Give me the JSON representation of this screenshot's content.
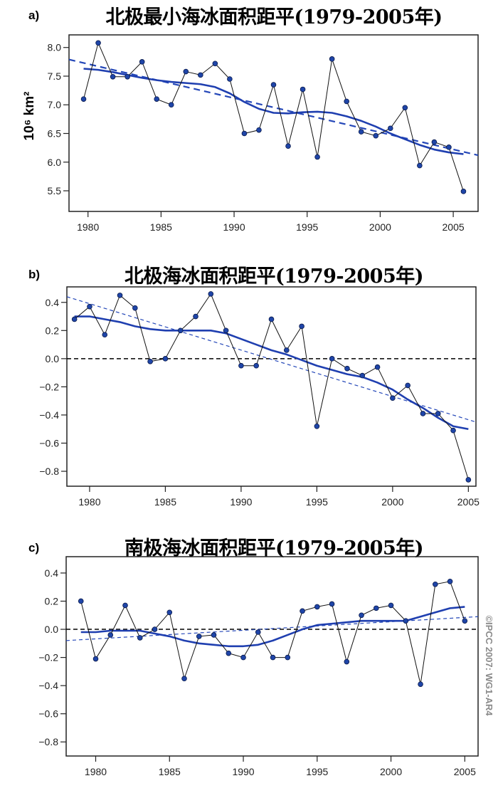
{
  "colors": {
    "points": "#1f45a8",
    "smooth": "#1f3fb0",
    "trend": "#2447b8",
    "observed_line": "#111111",
    "zero_line": "#000000",
    "copyright": "#9a9a9a"
  },
  "copyright": "©IPCC 2007: WG1-AR4",
  "chart_data": [
    {
      "type": "line",
      "panel_label": "a)",
      "title": "北极最小海冰面积距平(1979-2005年)",
      "ylabel": "10⁶ km²",
      "xlabel": "",
      "xlim": [
        1978.7,
        2006.7
      ],
      "ylim": [
        5.14,
        8.22
      ],
      "xticks": [
        1980,
        1985,
        1990,
        1995,
        2000,
        2005
      ],
      "yticks": [
        "5.5",
        "6.0",
        "6.5",
        "7.0",
        "7.5",
        "8.0"
      ],
      "zero_line": false,
      "x": [
        1979,
        1980,
        1981,
        1982,
        1983,
        1984,
        1985,
        1986,
        1987,
        1988,
        1989,
        1990,
        1991,
        1992,
        1993,
        1994,
        1995,
        1996,
        1997,
        1998,
        1999,
        2000,
        2001,
        2002,
        2003,
        2004,
        2005
      ],
      "series": [
        {
          "kind": "observed",
          "values": [
            7.1,
            8.08,
            7.49,
            7.49,
            7.75,
            7.1,
            7.0,
            7.58,
            7.52,
            7.72,
            7.45,
            6.5,
            6.56,
            7.35,
            6.28,
            7.27,
            6.09,
            7.8,
            7.06,
            6.53,
            6.46,
            6.59,
            6.95,
            5.94,
            6.35,
            6.26,
            5.49
          ]
        },
        {
          "kind": "smoothed",
          "values": [
            7.63,
            7.61,
            7.57,
            7.52,
            7.47,
            7.43,
            7.4,
            7.38,
            7.36,
            7.31,
            7.2,
            7.05,
            6.93,
            6.86,
            6.85,
            6.87,
            6.88,
            6.86,
            6.8,
            6.72,
            6.62,
            6.5,
            6.4,
            6.3,
            6.22,
            6.17,
            6.14
          ]
        },
        {
          "kind": "linear-trend",
          "x": [
            1978.7,
            2006.7
          ],
          "values": [
            7.79,
            6.12
          ]
        }
      ]
    },
    {
      "type": "line",
      "panel_label": "b)",
      "title": "北极海冰面积距平(1979-2005年)",
      "xlabel": "",
      "ylabel": "",
      "xlim": [
        1978.5,
        2005.5
      ],
      "ylim": [
        -0.906,
        0.51
      ],
      "xticks": [
        1980,
        1985,
        1990,
        1995,
        2000,
        2005
      ],
      "yticks": [
        "-0.8",
        "-0.6",
        "-0.4",
        "-0.2",
        "0.0",
        "0.2",
        "0.4"
      ],
      "zero_line": true,
      "x": [
        1979,
        1980,
        1981,
        1982,
        1983,
        1984,
        1985,
        1986,
        1987,
        1988,
        1989,
        1990,
        1991,
        1992,
        1993,
        1994,
        1995,
        1996,
        1997,
        1998,
        1999,
        2000,
        2001,
        2002,
        2003,
        2004,
        2005
      ],
      "series": [
        {
          "kind": "observed",
          "values": [
            0.28,
            0.37,
            0.17,
            0.45,
            0.36,
            -0.02,
            0.0,
            0.2,
            0.3,
            0.46,
            0.2,
            -0.05,
            -0.05,
            0.28,
            0.06,
            0.23,
            -0.48,
            0.0,
            -0.07,
            -0.12,
            -0.06,
            -0.28,
            -0.19,
            -0.39,
            -0.39,
            -0.51,
            -0.86
          ]
        },
        {
          "kind": "smoothed",
          "values": [
            0.3,
            0.3,
            0.28,
            0.26,
            0.23,
            0.21,
            0.2,
            0.2,
            0.2,
            0.2,
            0.18,
            0.14,
            0.1,
            0.06,
            0.03,
            -0.01,
            -0.05,
            -0.08,
            -0.11,
            -0.13,
            -0.17,
            -0.22,
            -0.29,
            -0.35,
            -0.42,
            -0.48,
            -0.5
          ]
        },
        {
          "kind": "linear-trend",
          "x": [
            1978.5,
            2005.5
          ],
          "values": [
            0.44,
            -0.45
          ]
        }
      ]
    },
    {
      "type": "line",
      "panel_label": "c)",
      "title": "南极海冰面积距平(1979-2005年)",
      "xlabel": "",
      "ylabel": "",
      "xlim": [
        1978.0,
        2005.9
      ],
      "ylim": [
        -0.9,
        0.516
      ],
      "xticks": [
        1980,
        1985,
        1990,
        1995,
        2000,
        2005
      ],
      "yticks": [
        "-0.8",
        "-0.6",
        "-0.4",
        "-0.2",
        "0.0",
        "0.2",
        "0.4"
      ],
      "zero_line": true,
      "x": [
        1979,
        1980,
        1981,
        1982,
        1983,
        1984,
        1985,
        1986,
        1987,
        1988,
        1989,
        1990,
        1991,
        1992,
        1993,
        1994,
        1995,
        1996,
        1997,
        1998,
        1999,
        2000,
        2001,
        2002,
        2003,
        2004,
        2005
      ],
      "series": [
        {
          "kind": "observed",
          "values": [
            0.2,
            -0.21,
            -0.04,
            0.17,
            -0.06,
            0.0,
            0.12,
            -0.35,
            -0.05,
            -0.04,
            -0.17,
            -0.2,
            -0.02,
            -0.2,
            -0.2,
            0.13,
            0.16,
            0.18,
            -0.23,
            0.1,
            0.15,
            0.17,
            0.06,
            -0.39,
            0.32,
            0.34,
            0.06
          ]
        },
        {
          "kind": "smoothed",
          "values": [
            -0.02,
            -0.02,
            -0.01,
            -0.01,
            -0.01,
            -0.03,
            -0.05,
            -0.08,
            -0.1,
            -0.11,
            -0.12,
            -0.12,
            -0.11,
            -0.08,
            -0.04,
            0.0,
            0.03,
            0.04,
            0.05,
            0.06,
            0.06,
            0.06,
            0.06,
            0.09,
            0.12,
            0.15,
            0.16
          ]
        },
        {
          "kind": "linear-trend",
          "x": [
            1978.0,
            2005.9
          ],
          "values": [
            -0.08,
            0.09
          ]
        }
      ]
    }
  ]
}
